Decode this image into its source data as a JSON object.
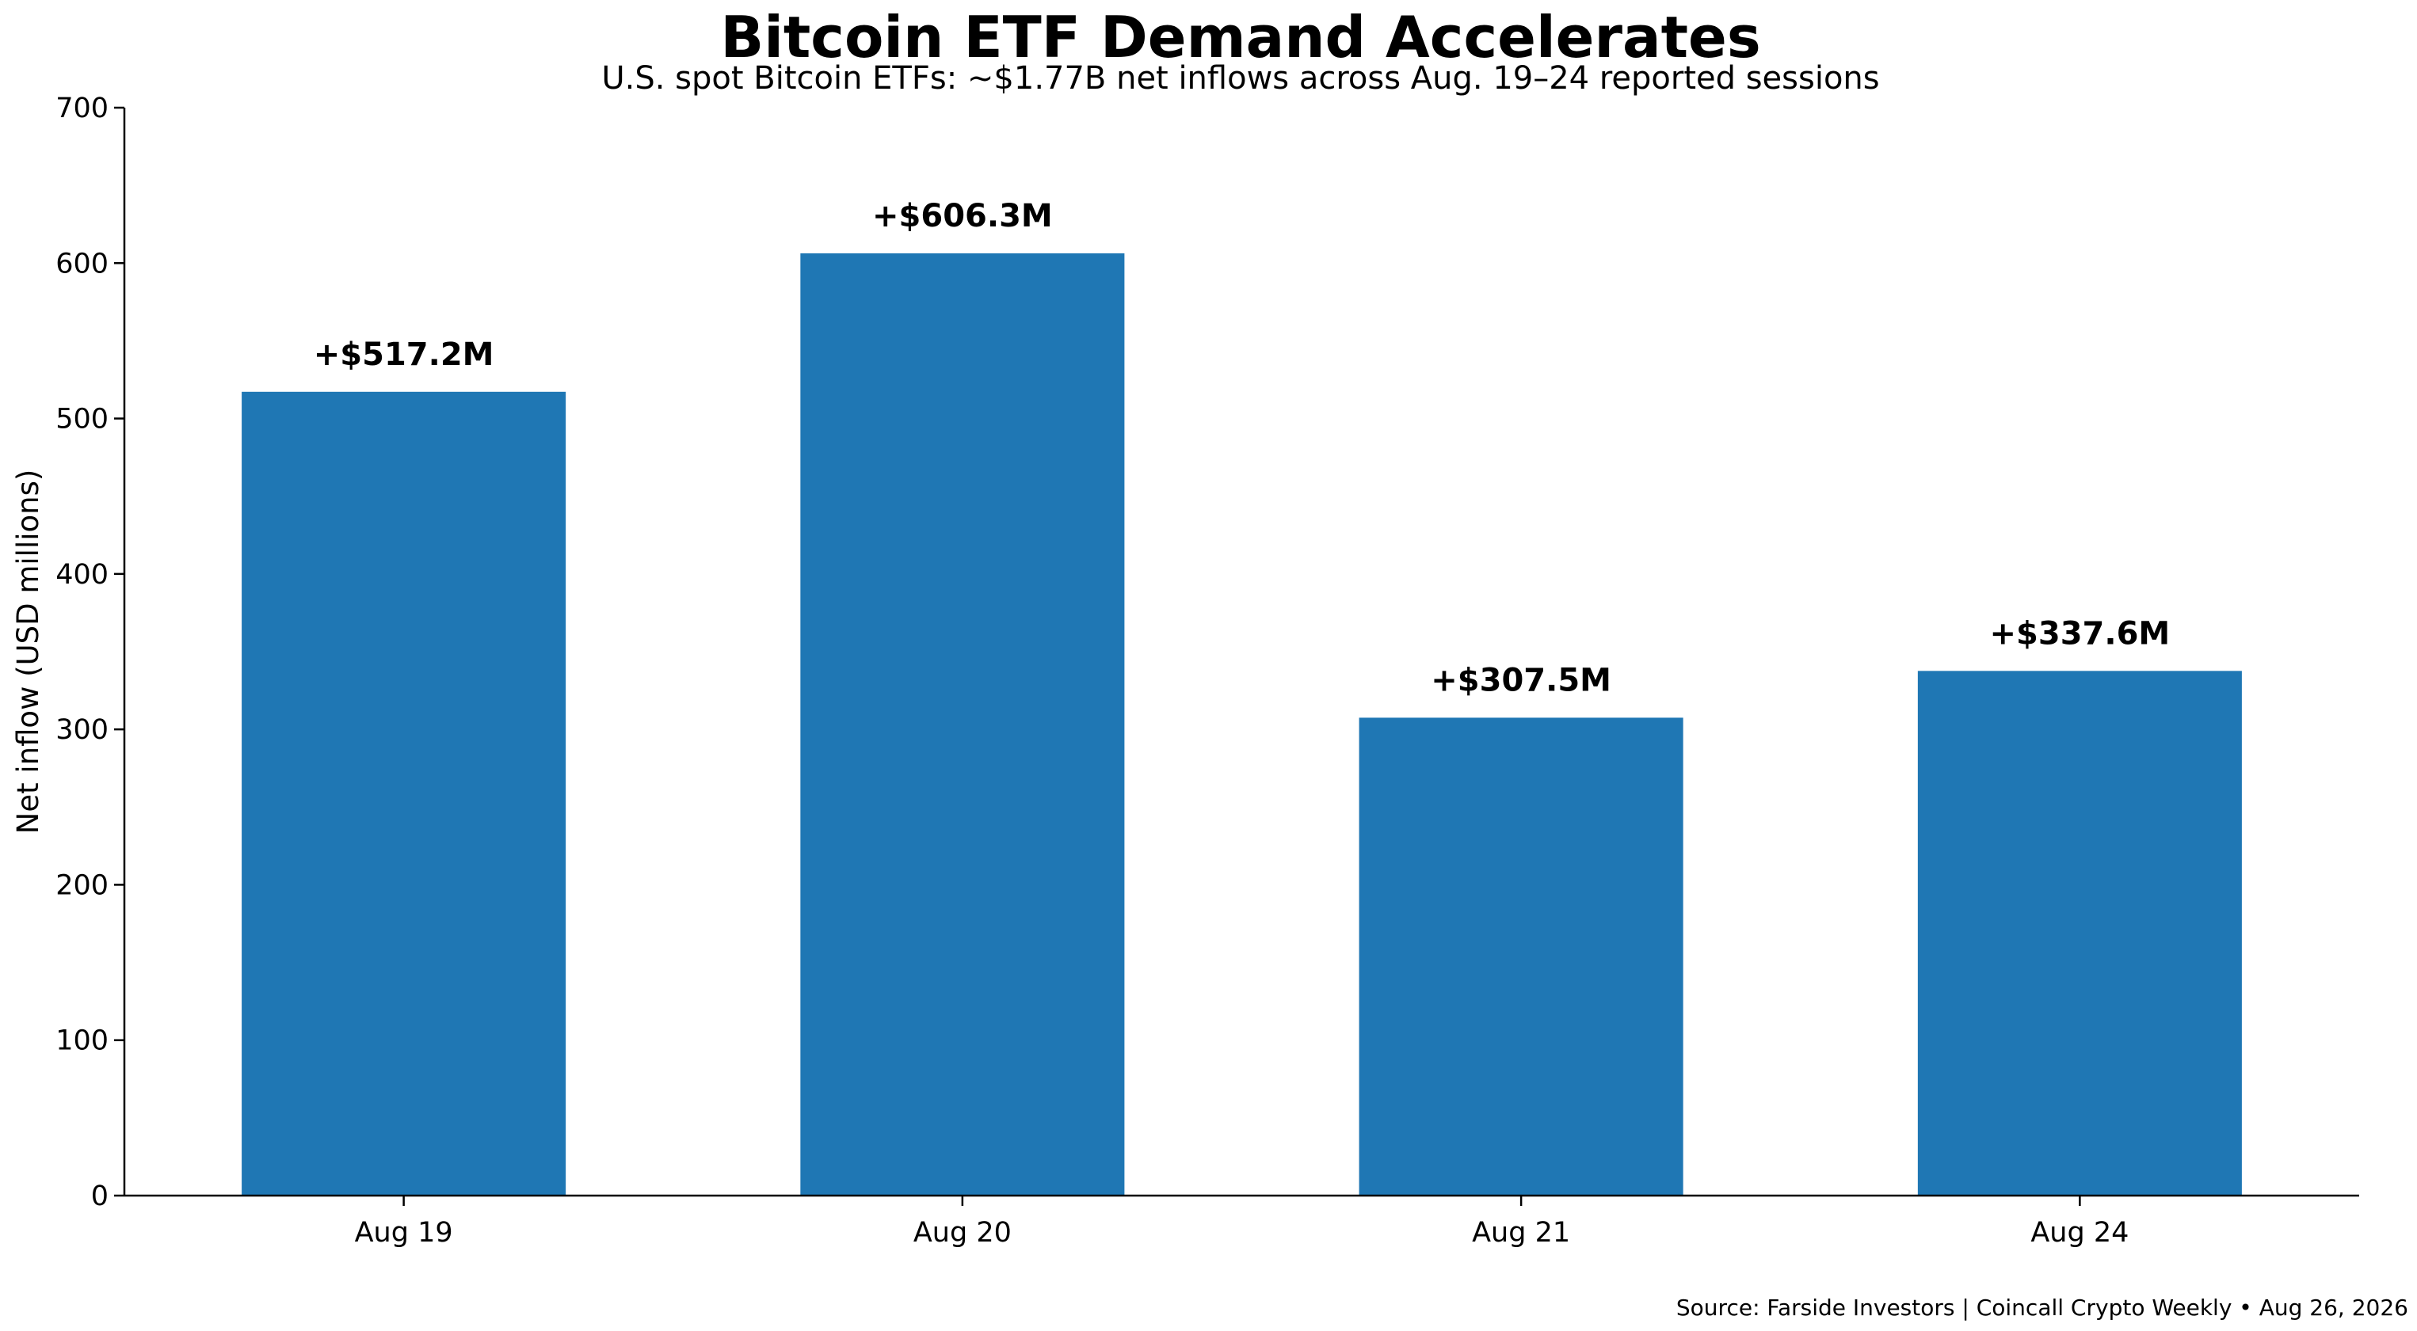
{
  "chart_data": {
    "type": "bar",
    "title": "Bitcoin ETF Demand Accelerates",
    "subtitle": "U.S. spot Bitcoin ETFs: ~$1.77B net inflows across Aug. 19–24 reported sessions",
    "xlabel": "",
    "ylabel": "Net inflow (USD millions)",
    "categories": [
      "Aug 19",
      "Aug 20",
      "Aug 21",
      "Aug 24"
    ],
    "values": [
      517.2,
      606.3,
      307.5,
      337.6
    ],
    "data_labels": [
      "+$517.2M",
      "+$606.3M",
      "+$307.5M",
      "+$337.6M"
    ],
    "ylim": [
      0,
      700
    ],
    "yticks": [
      0,
      100,
      200,
      300,
      400,
      500,
      600,
      700
    ],
    "ytick_labels": [
      "0",
      "100",
      "200",
      "300",
      "400",
      "500",
      "600",
      "700"
    ],
    "grid": false,
    "legend": "none",
    "bar_color": "#1f77b4",
    "source": "Source: Farside Investors | Coincall Crypto Weekly • Aug 26, 2026"
  }
}
